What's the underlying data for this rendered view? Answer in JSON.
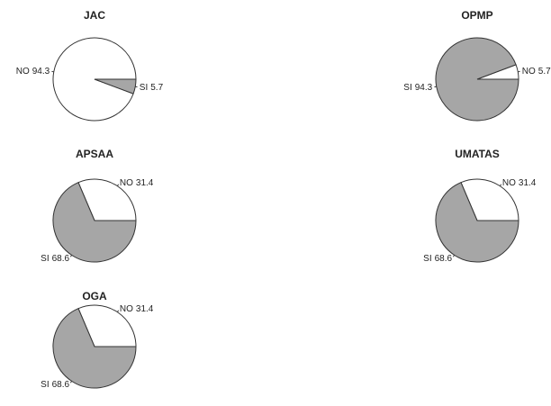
{
  "chart_data": [
    {
      "type": "pie",
      "title": "JAC",
      "categories": [
        "NO",
        "SI"
      ],
      "values": [
        94.3,
        5.7
      ],
      "colors": [
        "#ffffff",
        "#a6a6a6"
      ]
    },
    {
      "type": "pie",
      "title": "OPMP",
      "categories": [
        "NO",
        "SI"
      ],
      "values": [
        5.7,
        94.3
      ],
      "colors": [
        "#ffffff",
        "#a6a6a6"
      ]
    },
    {
      "type": "pie",
      "title": "APSAA",
      "categories": [
        "NO",
        "SI"
      ],
      "values": [
        31.4,
        68.6
      ],
      "colors": [
        "#ffffff",
        "#a6a6a6"
      ]
    },
    {
      "type": "pie",
      "title": "UMATAS",
      "categories": [
        "NO",
        "SI"
      ],
      "values": [
        31.4,
        68.6
      ],
      "colors": [
        "#ffffff",
        "#a6a6a6"
      ]
    },
    {
      "type": "pie",
      "title": "OGA",
      "categories": [
        "NO",
        "SI"
      ],
      "values": [
        31.4,
        68.6
      ],
      "colors": [
        "#ffffff",
        "#a6a6a6"
      ]
    }
  ]
}
